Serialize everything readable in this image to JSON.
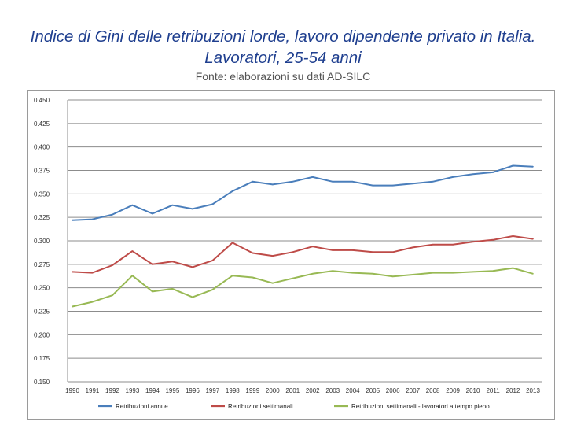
{
  "header": {
    "title_line1": "Indice di Gini delle retribuzioni lorde, lavoro dipendente privato in Italia.",
    "title_line2": "Lavoratori, 25-54 anni",
    "source": "Fonte: elaborazioni su dati AD-SILC"
  },
  "chart_data": {
    "type": "line",
    "categories": [
      "1990",
      "1991",
      "1992",
      "1993",
      "1994",
      "1995",
      "1996",
      "1997",
      "1998",
      "1999",
      "2000",
      "2001",
      "2002",
      "2003",
      "2004",
      "2005",
      "2006",
      "2007",
      "2008",
      "2009",
      "2010",
      "2011",
      "2012",
      "2013"
    ],
    "ylim": [
      0.15,
      0.45
    ],
    "yticks": [
      "0.150",
      "0.175",
      "0.200",
      "0.225",
      "0.250",
      "0.275",
      "0.300",
      "0.325",
      "0.350",
      "0.375",
      "0.400",
      "0.425",
      "0.450"
    ],
    "grid": true,
    "legend_position": "bottom",
    "series": [
      {
        "name": "Retribuzioni annue",
        "color": "#4a7ebb",
        "values": [
          0.322,
          0.323,
          0.328,
          0.338,
          0.329,
          0.338,
          0.334,
          0.339,
          0.353,
          0.363,
          0.36,
          0.363,
          0.368,
          0.363,
          0.363,
          0.359,
          0.359,
          0.361,
          0.363,
          0.368,
          0.371,
          0.373,
          0.38,
          0.379
        ]
      },
      {
        "name": "Retribuzioni settimanali",
        "color": "#be4b48",
        "values": [
          0.267,
          0.266,
          0.274,
          0.289,
          0.275,
          0.278,
          0.272,
          0.279,
          0.298,
          0.287,
          0.284,
          0.288,
          0.294,
          0.29,
          0.29,
          0.288,
          0.288,
          0.293,
          0.296,
          0.296,
          0.299,
          0.301,
          0.305,
          0.302
        ]
      },
      {
        "name": "Retribuzioni settimanali - lavoratori a tempo pieno",
        "color": "#98b954",
        "values": [
          0.23,
          0.235,
          0.242,
          0.263,
          0.246,
          0.249,
          0.24,
          0.248,
          0.263,
          0.261,
          0.255,
          0.26,
          0.265,
          0.268,
          0.266,
          0.265,
          0.262,
          0.264,
          0.266,
          0.266,
          0.267,
          0.268,
          0.271,
          0.265
        ]
      }
    ]
  }
}
